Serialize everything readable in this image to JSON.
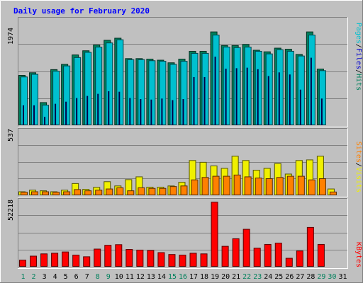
{
  "title": "Daily usage for February 2020",
  "colors": {
    "background": "#c0c0c0",
    "title": "#0000ff",
    "hits": "#00805c",
    "files": "#00c0d0",
    "pages": "#0000d0",
    "visits": "#f0f000",
    "sites": "#ff8000",
    "kbytes": "#ff0000",
    "weekend_label": "#00805c",
    "weekday_label": "#000000"
  },
  "panels": {
    "top": {
      "max_label": "1974",
      "legend": {
        "pages": "Pages",
        "sep1": "/",
        "files": "Files",
        "sep2": "/",
        "hits": "Hits"
      }
    },
    "middle": {
      "max_label": "537",
      "legend": {
        "sites": "Sites",
        "sep": "/",
        "visits": "Visits"
      }
    },
    "bottom": {
      "max_label": "52218",
      "legend": {
        "kbytes": "KBytes"
      }
    }
  },
  "chart_data": [
    {
      "type": "bar",
      "title": "Daily usage for February 2020",
      "categories": [
        "1",
        "2",
        "3",
        "4",
        "5",
        "6",
        "7",
        "8",
        "9",
        "10",
        "11",
        "12",
        "13",
        "14",
        "15",
        "16",
        "17",
        "18",
        "19",
        "20",
        "21",
        "22",
        "23",
        "24",
        "25",
        "26",
        "27",
        "28",
        "29",
        "30",
        "31"
      ],
      "weekend_days": [
        "1",
        "2",
        "8",
        "9",
        "15",
        "16",
        "22",
        "23",
        "29",
        "30"
      ],
      "ylim": [
        0,
        1974
      ],
      "series": [
        {
          "name": "Hits",
          "values": [
            960,
            1010,
            440,
            1070,
            1170,
            1350,
            1430,
            1540,
            1630,
            1670,
            1280,
            1280,
            1270,
            1250,
            1200,
            1270,
            1420,
            1420,
            1790,
            1530,
            1530,
            1550,
            1440,
            1410,
            1480,
            1460,
            1360,
            1790,
            1080,
            0,
            0
          ]
        },
        {
          "name": "Files",
          "values": [
            930,
            980,
            390,
            1040,
            1140,
            1300,
            1400,
            1500,
            1580,
            1640,
            1260,
            1260,
            1240,
            1230,
            1170,
            1230,
            1380,
            1380,
            1730,
            1500,
            1490,
            1500,
            1420,
            1370,
            1450,
            1420,
            1330,
            1730,
            1050,
            0,
            0
          ]
        },
        {
          "name": "Pages",
          "values": [
            380,
            380,
            160,
            410,
            450,
            520,
            560,
            600,
            650,
            640,
            520,
            500,
            490,
            510,
            480,
            500,
            920,
            920,
            1310,
            1080,
            1090,
            1100,
            1070,
            940,
            1010,
            970,
            680,
            1290,
            510,
            0,
            0
          ]
        }
      ]
    },
    {
      "type": "bar",
      "categories": [
        "1",
        "2",
        "3",
        "4",
        "5",
        "6",
        "7",
        "8",
        "9",
        "10",
        "11",
        "12",
        "13",
        "14",
        "15",
        "16",
        "17",
        "18",
        "19",
        "20",
        "21",
        "22",
        "23",
        "24",
        "25",
        "26",
        "27",
        "28",
        "29",
        "30",
        "31"
      ],
      "ylim": [
        0,
        537
      ],
      "series": [
        {
          "name": "Visits",
          "values": [
            32,
            45,
            40,
            32,
            45,
            100,
            52,
            68,
            115,
            80,
            132,
            155,
            70,
            70,
            80,
            110,
            290,
            275,
            245,
            225,
            325,
            290,
            210,
            225,
            265,
            178,
            290,
            295,
            325,
            55,
            0
          ]
        },
        {
          "name": "Sites",
          "values": [
            28,
            32,
            32,
            28,
            32,
            50,
            40,
            45,
            55,
            65,
            40,
            65,
            60,
            60,
            75,
            80,
            130,
            150,
            160,
            160,
            170,
            155,
            145,
            140,
            150,
            160,
            160,
            130,
            140,
            30,
            0
          ]
        }
      ]
    },
    {
      "type": "bar",
      "categories": [
        "1",
        "2",
        "3",
        "4",
        "5",
        "6",
        "7",
        "8",
        "9",
        "10",
        "11",
        "12",
        "13",
        "14",
        "15",
        "16",
        "17",
        "18",
        "19",
        "20",
        "21",
        "22",
        "23",
        "24",
        "25",
        "26",
        "27",
        "28",
        "29",
        "30",
        "31"
      ],
      "ylim": [
        0,
        52218
      ],
      "series": [
        {
          "name": "KBytes",
          "values": [
            5500,
            8700,
            10500,
            11000,
            12000,
            9500,
            8200,
            14300,
            17300,
            17800,
            14000,
            13500,
            13200,
            11500,
            10000,
            9500,
            11000,
            10500,
            51500,
            16500,
            22500,
            30000,
            15000,
            18000,
            19000,
            7000,
            12800,
            31500,
            18000,
            0,
            0
          ]
        }
      ]
    }
  ]
}
